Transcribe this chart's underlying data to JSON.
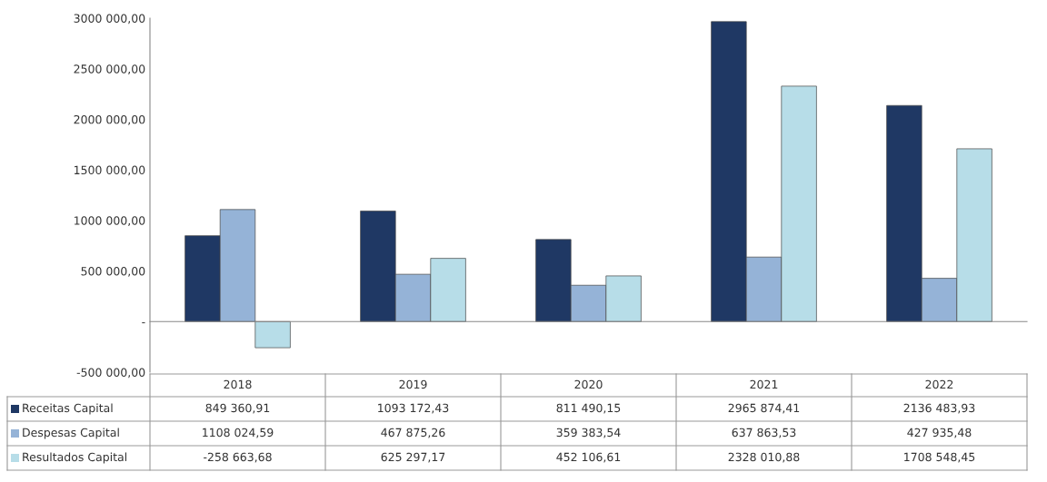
{
  "chart_data": {
    "type": "bar",
    "categories": [
      "2018",
      "2019",
      "2020",
      "2021",
      "2022"
    ],
    "series": [
      {
        "name": "Receitas Capital",
        "color": "#1f3864",
        "values": [
          849360.91,
          1093172.43,
          811490.15,
          2965874.41,
          2136483.93
        ],
        "value_labels": [
          "849 360,91",
          "1093 172,43",
          "811 490,15",
          "2965 874,41",
          "2136 483,93"
        ]
      },
      {
        "name": "Despesas Capital",
        "color": "#95b3d7",
        "values": [
          1108024.59,
          467875.26,
          359383.54,
          637863.53,
          427935.48
        ],
        "value_labels": [
          "1108 024,59",
          "467 875,26",
          "359 383,54",
          "637 863,53",
          "427 935,48"
        ]
      },
      {
        "name": "Resultados Capital",
        "color": "#b7dde8",
        "values": [
          -258663.68,
          625297.17,
          452106.61,
          2328010.88,
          1708548.45
        ],
        "value_labels": [
          "-258 663,68",
          "625 297,17",
          "452 106,61",
          "2328 010,88",
          "1708 548,45"
        ]
      }
    ],
    "ylim": [
      -500000,
      3000000
    ],
    "yticks": [
      {
        "value": -500000,
        "label": "-500 000,00"
      },
      {
        "value": 0,
        "label": "-"
      },
      {
        "value": 500000,
        "label": "500 000,00"
      },
      {
        "value": 1000000,
        "label": "1000 000,00"
      },
      {
        "value": 1500000,
        "label": "1500 000,00"
      },
      {
        "value": 2000000,
        "label": "2000 000,00"
      },
      {
        "value": 2500000,
        "label": "2500 000,00"
      },
      {
        "value": 3000000,
        "label": "3000 000,00"
      }
    ],
    "legend": "bottom"
  }
}
